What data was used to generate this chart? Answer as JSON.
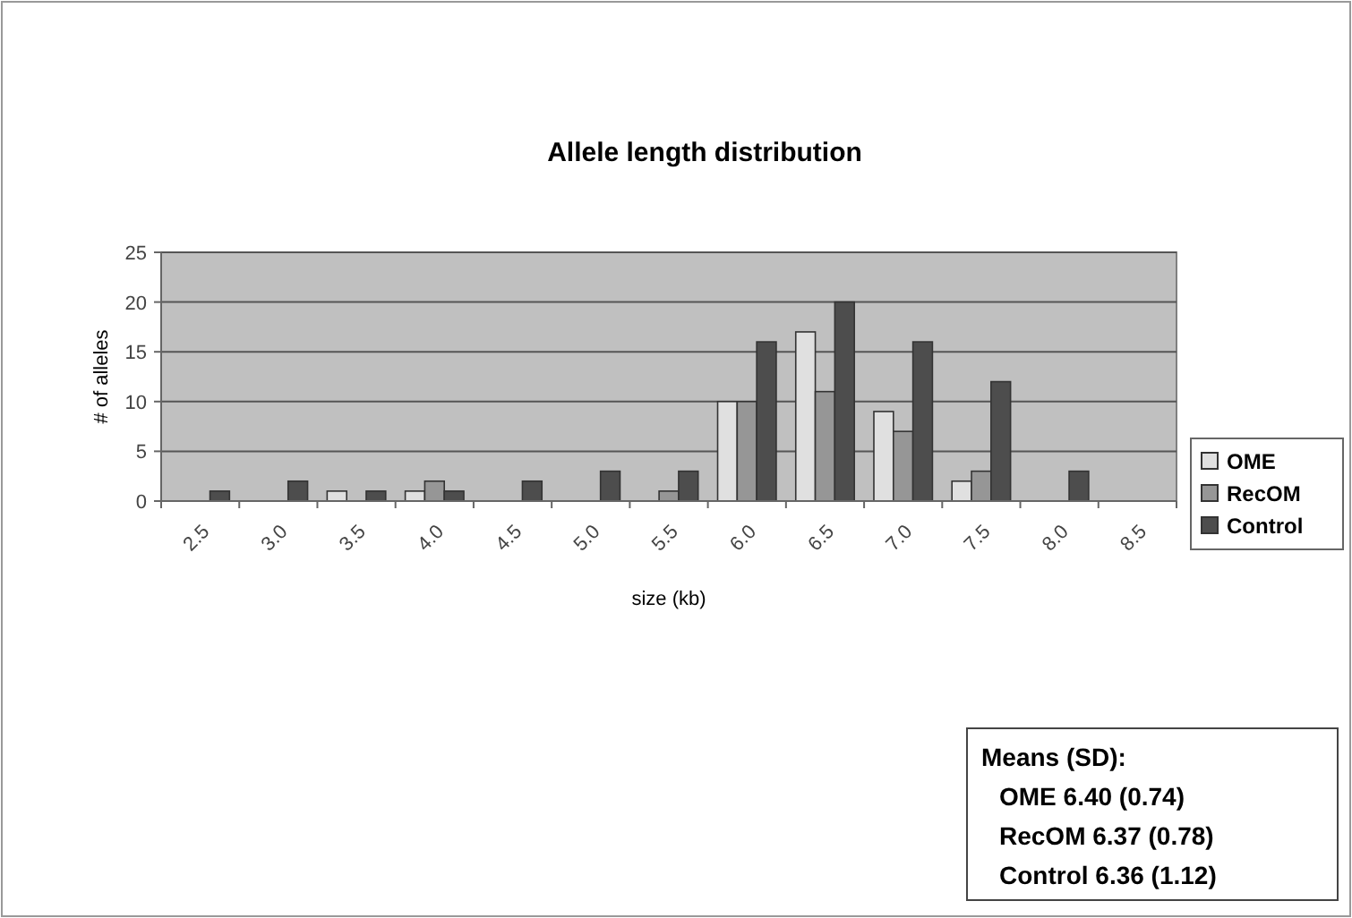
{
  "chart_data": {
    "type": "bar",
    "title": "Allele length distribution",
    "xlabel": "size (kb)",
    "ylabel": "# of alleles",
    "categories": [
      "2.5",
      "3.0",
      "3.5",
      "4.0",
      "4.5",
      "5.0",
      "5.5",
      "6.0",
      "6.5",
      "7.0",
      "7.5",
      "8.0",
      "8.5"
    ],
    "series": [
      {
        "name": "OME",
        "color": "#e0e0e0",
        "values": [
          0,
          0,
          1,
          1,
          0,
          0,
          0,
          10,
          17,
          9,
          2,
          0,
          0
        ]
      },
      {
        "name": "RecOM",
        "color": "#969696",
        "values": [
          0,
          0,
          0,
          2,
          0,
          0,
          1,
          10,
          11,
          7,
          3,
          0,
          0
        ]
      },
      {
        "name": "Control",
        "color": "#4d4d4d",
        "values": [
          1,
          2,
          1,
          1,
          2,
          3,
          3,
          16,
          20,
          16,
          12,
          3,
          0
        ]
      }
    ],
    "ylim": [
      0,
      25
    ],
    "yticks": [
      0,
      5,
      10,
      15,
      20,
      25
    ],
    "grid": "y",
    "legend": "right",
    "annotations": [
      "Means (SD):",
      "OME 6.40 (0.74)",
      "RecOM 6.37 (0.78)",
      "Control 6.36 (1.12)"
    ]
  }
}
